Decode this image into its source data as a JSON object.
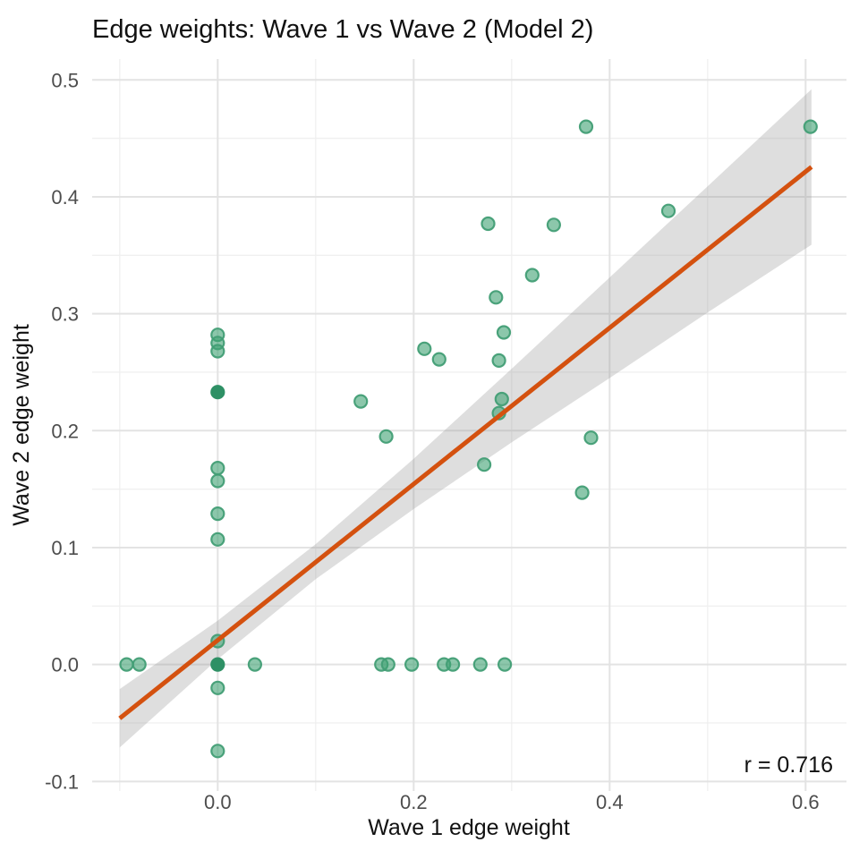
{
  "title": "Edge weights: Wave 1 vs Wave 2 (Model 2)",
  "colors": {
    "background": "#ffffff",
    "grid_major": "#e3e3e3",
    "grid_minor": "#f0f0f0",
    "point_fill": "#3fa273",
    "point_stroke": "#429e75",
    "point_dark_fill": "#2e9065",
    "regression_line": "#d4510f",
    "ci_band": "#999999",
    "title_text": "#111111",
    "axis_text": "#4d4d4d"
  },
  "chart_data": {
    "type": "scatter",
    "title": "Edge weights: Wave 1 vs Wave 2 (Model 2)",
    "xlabel": "Wave 1 edge weight",
    "ylabel": "Wave 2 edge weight",
    "r_text": "r = 0.716",
    "xlim": [
      -0.128,
      0.642
    ],
    "ylim": [
      -0.108,
      0.518
    ],
    "grid": true,
    "legend_position": "none",
    "x_ticks": [
      {
        "value": 0.0,
        "label": "0.0"
      },
      {
        "value": 0.2,
        "label": "0.2"
      },
      {
        "value": 0.4,
        "label": "0.4"
      },
      {
        "value": 0.6,
        "label": "0.6"
      }
    ],
    "x_minor_ticks": [
      -0.1,
      0.1,
      0.3,
      0.5
    ],
    "y_ticks": [
      {
        "value": 0.5,
        "label": "0.5"
      },
      {
        "value": 0.4,
        "label": "0.4"
      },
      {
        "value": 0.3,
        "label": "0.3"
      },
      {
        "value": 0.2,
        "label": "0.2"
      },
      {
        "value": 0.1,
        "label": "0.1"
      },
      {
        "value": 0.0,
        "label": "0.0"
      },
      {
        "value": -0.1,
        "label": "-0.1"
      }
    ],
    "y_minor_ticks": [
      0.45,
      0.35,
      0.25,
      0.15,
      0.05,
      -0.05
    ],
    "points": [
      {
        "x": 0.0,
        "y": 0.282
      },
      {
        "x": 0.0,
        "y": 0.275
      },
      {
        "x": 0.0,
        "y": 0.268
      },
      {
        "x": 0.0,
        "y": 0.233,
        "dark": true
      },
      {
        "x": 0.0,
        "y": 0.168
      },
      {
        "x": 0.0,
        "y": 0.157
      },
      {
        "x": 0.0,
        "y": 0.129
      },
      {
        "x": 0.0,
        "y": 0.107
      },
      {
        "x": 0.0,
        "y": 0.02
      },
      {
        "x": 0.0,
        "y": 0.0,
        "dark": true
      },
      {
        "x": 0.0,
        "y": -0.02
      },
      {
        "x": 0.0,
        "y": -0.074
      },
      {
        "x": -0.093,
        "y": 0.0
      },
      {
        "x": -0.08,
        "y": 0.0
      },
      {
        "x": 0.038,
        "y": 0.0
      },
      {
        "x": 0.167,
        "y": 0.0
      },
      {
        "x": 0.174,
        "y": 0.0
      },
      {
        "x": 0.198,
        "y": 0.0
      },
      {
        "x": 0.231,
        "y": 0.0
      },
      {
        "x": 0.24,
        "y": 0.0
      },
      {
        "x": 0.268,
        "y": 0.0
      },
      {
        "x": 0.293,
        "y": 0.0
      },
      {
        "x": 0.146,
        "y": 0.225
      },
      {
        "x": 0.172,
        "y": 0.195
      },
      {
        "x": 0.211,
        "y": 0.27
      },
      {
        "x": 0.226,
        "y": 0.261
      },
      {
        "x": 0.272,
        "y": 0.171
      },
      {
        "x": 0.276,
        "y": 0.377
      },
      {
        "x": 0.284,
        "y": 0.314
      },
      {
        "x": 0.287,
        "y": 0.26
      },
      {
        "x": 0.287,
        "y": 0.215
      },
      {
        "x": 0.29,
        "y": 0.227
      },
      {
        "x": 0.292,
        "y": 0.284
      },
      {
        "x": 0.321,
        "y": 0.333
      },
      {
        "x": 0.343,
        "y": 0.376
      },
      {
        "x": 0.372,
        "y": 0.147
      },
      {
        "x": 0.376,
        "y": 0.46
      },
      {
        "x": 0.381,
        "y": 0.194
      },
      {
        "x": 0.46,
        "y": 0.388
      },
      {
        "x": 0.605,
        "y": 0.46
      }
    ],
    "regression": {
      "type": "linear",
      "slope": 0.6675,
      "intercept": 0.021,
      "x_start": -0.1,
      "x_end": 0.606,
      "y_start": -0.046,
      "y_end": 0.4255
    },
    "ci_band": {
      "x": [
        -0.1,
        0.0,
        0.1,
        0.2,
        0.3,
        0.4,
        0.5,
        0.606
      ],
      "upper": [
        -0.021,
        0.0375,
        0.103,
        0.176,
        0.253,
        0.331,
        0.409,
        0.492
      ],
      "lower": [
        -0.071,
        0.0045,
        0.073,
        0.133,
        0.19,
        0.245,
        0.301,
        0.359
      ]
    }
  }
}
